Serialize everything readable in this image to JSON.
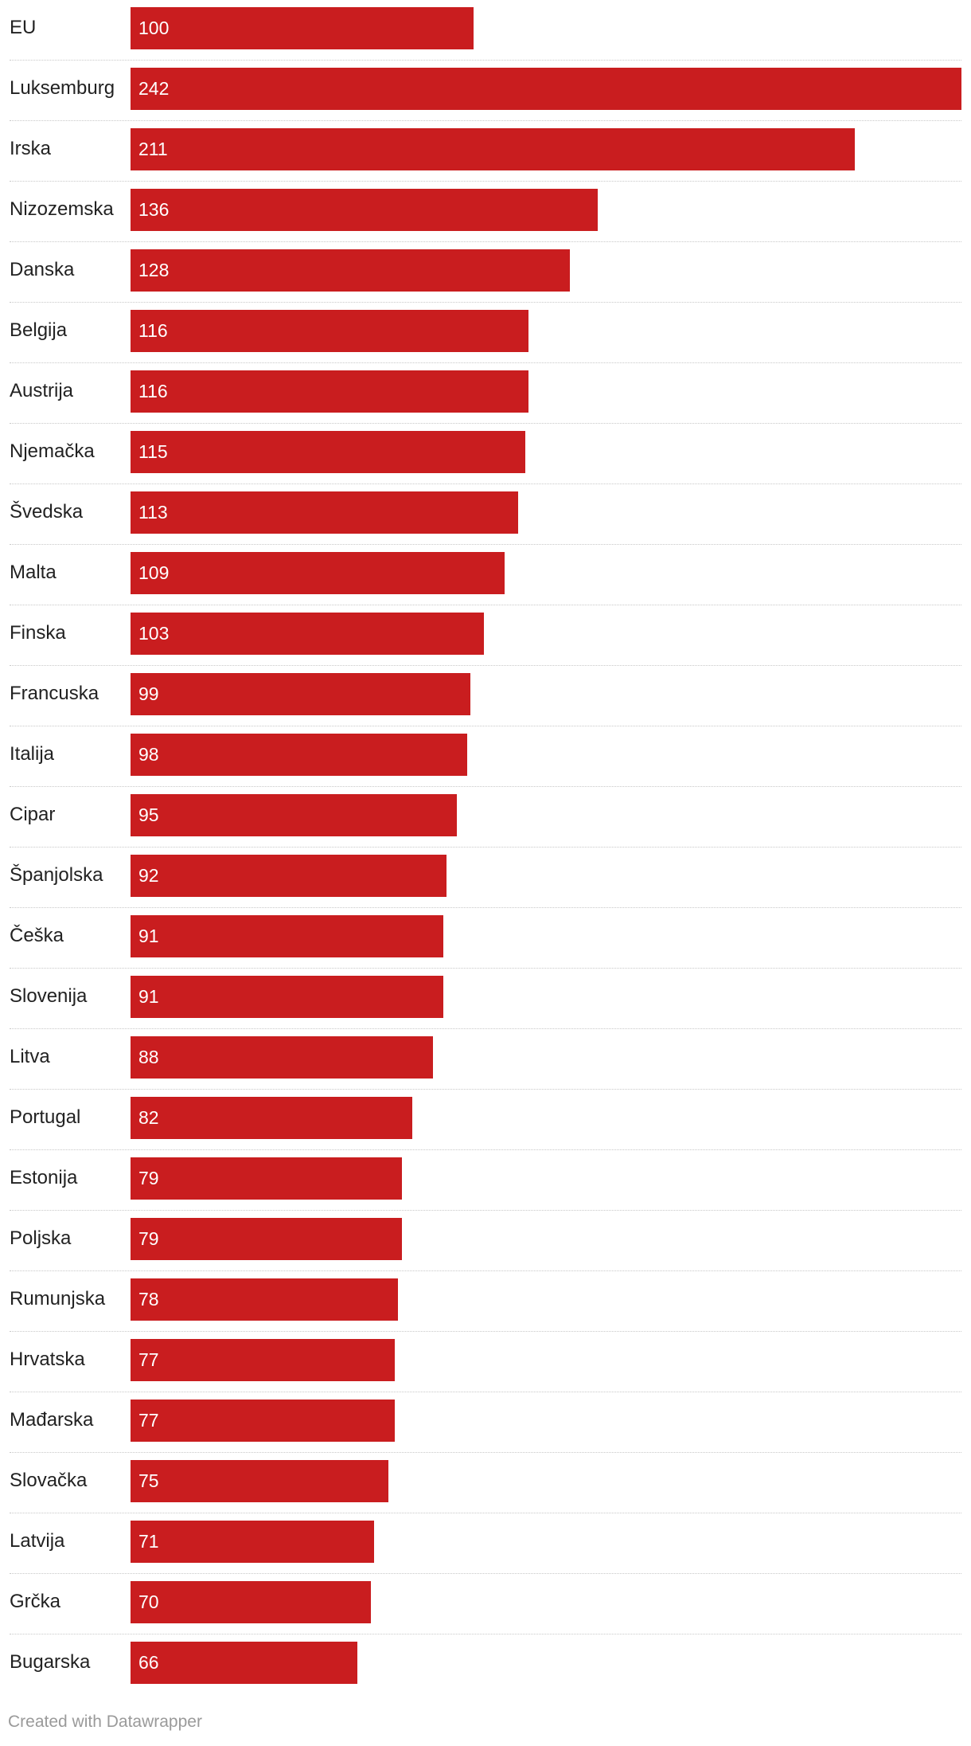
{
  "chart_data": {
    "type": "bar",
    "orientation": "horizontal",
    "categories": [
      "EU",
      "Luksemburg",
      "Irska",
      "Nizozemska",
      "Danska",
      "Belgija",
      "Austrija",
      "Njemačka",
      "Švedska",
      "Malta",
      "Finska",
      "Francuska",
      "Italija",
      "Cipar",
      "Španjolska",
      "Češka",
      "Slovenija",
      "Litva",
      "Portugal",
      "Estonija",
      "Poljska",
      "Rumunjska",
      "Hrvatska",
      "Mađarska",
      "Slovačka",
      "Latvija",
      "Grčka",
      "Bugarska"
    ],
    "values": [
      100,
      242,
      211,
      136,
      128,
      116,
      116,
      115,
      113,
      109,
      103,
      99,
      98,
      95,
      92,
      91,
      91,
      88,
      82,
      79,
      79,
      78,
      77,
      77,
      75,
      71,
      70,
      66
    ],
    "xlim": [
      0,
      242
    ],
    "bar_color": "#c91d1f",
    "grid": false,
    "value_labels": "inside-left"
  },
  "footer": {
    "credit": "Created with Datawrapper"
  }
}
